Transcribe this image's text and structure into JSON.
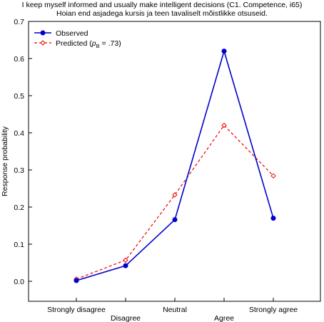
{
  "chart_data": {
    "type": "line",
    "title": "I keep myself informed and usually make intelligent decisions (C1. Competence, i65)",
    "subtitle": "Hoian end asjadega kursis ja teen tavaliselt mõistlikke otsuseid.",
    "xlabel": "",
    "ylabel": "Response probability",
    "categories": [
      "Strongly disagree",
      "Disagree",
      "Neutral",
      "Agree",
      "Strongly agree"
    ],
    "ylim": [
      0,
      0.7
    ],
    "yticks": [
      "0.0",
      "0.1",
      "0.2",
      "0.3",
      "0.4",
      "0.5",
      "0.6",
      "0.7"
    ],
    "grid": false,
    "legend_position": "top-left",
    "series": [
      {
        "name": "Observed",
        "values": [
          0.002,
          0.042,
          0.166,
          0.62,
          0.17
        ],
        "color": "#0000cc",
        "style": "solid",
        "marker": "filled-circle"
      },
      {
        "name": "Predicted",
        "legend_parts": {
          "prefix": "Predicted (",
          "italic": "p",
          "sub": "B",
          "suffix": " = .73)"
        },
        "values": [
          0.006,
          0.057,
          0.233,
          0.42,
          0.284
        ],
        "color": "#ee0000",
        "style": "dashed",
        "marker": "open-diamond"
      }
    ]
  }
}
